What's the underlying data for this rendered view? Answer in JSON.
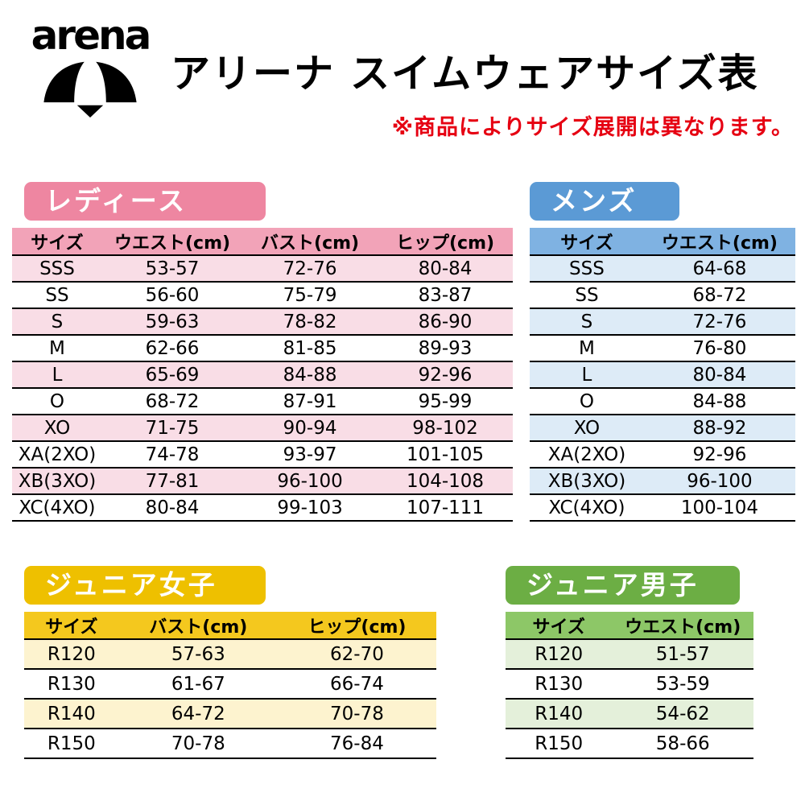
{
  "page": {
    "brand": "arena",
    "title": "アリーナ スイムウェアサイズ表",
    "note": "※商品によりサイズ展開は異なります。",
    "note_color": "#e60012"
  },
  "tables": {
    "ladies": {
      "badge": "レディース",
      "colors": {
        "badge": "#ee86a1",
        "header": "#f2a3b8",
        "row_tint": "#f9dde6"
      },
      "columns": [
        "サイズ",
        "ウエスト(cm)",
        "バスト(cm)",
        "ヒップ(cm)"
      ],
      "rows": [
        [
          "SSS",
          "53-57",
          "72-76",
          "80-84"
        ],
        [
          "SS",
          "56-60",
          "75-79",
          "83-87"
        ],
        [
          "S",
          "59-63",
          "78-82",
          "86-90"
        ],
        [
          "M",
          "62-66",
          "81-85",
          "89-93"
        ],
        [
          "L",
          "65-69",
          "84-88",
          "92-96"
        ],
        [
          "O",
          "68-72",
          "87-91",
          "95-99"
        ],
        [
          "XO",
          "71-75",
          "90-94",
          "98-102"
        ],
        [
          "XA(2XO)",
          "74-78",
          "93-97",
          "101-105"
        ],
        [
          "XB(3XO)",
          "77-81",
          "96-100",
          "104-108"
        ],
        [
          "XC(4XO)",
          "80-84",
          "99-103",
          "107-111"
        ]
      ]
    },
    "mens": {
      "badge": "メンズ",
      "colors": {
        "badge": "#5b9ad5",
        "header": "#7fb2e2",
        "row_tint": "#ddebf7"
      },
      "columns": [
        "サイズ",
        "ウエスト(cm)"
      ],
      "rows": [
        [
          "SSS",
          "64-68"
        ],
        [
          "SS",
          "68-72"
        ],
        [
          "S",
          "72-76"
        ],
        [
          "M",
          "76-80"
        ],
        [
          "L",
          "80-84"
        ],
        [
          "O",
          "84-88"
        ],
        [
          "XO",
          "88-92"
        ],
        [
          "XA(2XO)",
          "92-96"
        ],
        [
          "XB(3XO)",
          "96-100"
        ],
        [
          "XC(4XO)",
          "100-104"
        ]
      ]
    },
    "junior_girls": {
      "badge": "ジュニア女子",
      "colors": {
        "badge": "#eec000",
        "header": "#f4c81e",
        "row_tint": "#fdf3cf"
      },
      "columns": [
        "サイズ",
        "バスト(cm)",
        "ヒップ(cm)"
      ],
      "rows": [
        [
          "R120",
          "57-63",
          "62-70"
        ],
        [
          "R130",
          "61-67",
          "66-74"
        ],
        [
          "R140",
          "64-72",
          "70-78"
        ],
        [
          "R150",
          "70-78",
          "76-84"
        ]
      ]
    },
    "junior_boys": {
      "badge": "ジュニア男子",
      "colors": {
        "badge": "#6cae44",
        "header": "#8dc767",
        "row_tint": "#e4f0da"
      },
      "columns": [
        "サイズ",
        "ウエスト(cm)"
      ],
      "rows": [
        [
          "R120",
          "51-57"
        ],
        [
          "R130",
          "53-59"
        ],
        [
          "R140",
          "54-62"
        ],
        [
          "R150",
          "58-66"
        ]
      ]
    }
  }
}
